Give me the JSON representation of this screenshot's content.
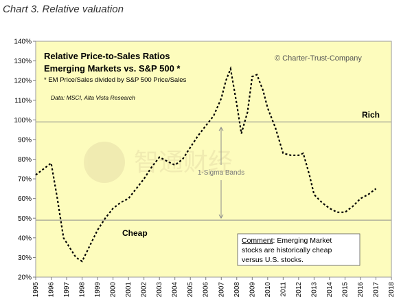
{
  "caption": "Chart 3. Relative valuation",
  "chart_data": {
    "type": "line",
    "title": "Relative Price-to-Sales Ratios",
    "subtitle": "Emerging Markets vs. S&P 500 *",
    "note": "* EM Price/Sales divided by S&P 500 Price/Sales",
    "source": "Data: MSCI, Alta Vista Research",
    "copyright": "© Charter-Trust-Company",
    "x_ticks": [
      "1995",
      "1996",
      "1997",
      "1998",
      "1999",
      "2000",
      "2001",
      "2002",
      "2003",
      "2004",
      "2005",
      "2006",
      "2007",
      "2008",
      "2009",
      "2010",
      "2011",
      "2012",
      "2013",
      "2014",
      "2015",
      "2016",
      "2017",
      "2018"
    ],
    "xlim": [
      1995,
      2018
    ],
    "ylim": [
      20,
      140
    ],
    "y_ticks": [
      20,
      30,
      40,
      50,
      60,
      70,
      80,
      90,
      100,
      110,
      120,
      130,
      140
    ],
    "y_tick_labels": [
      "20%",
      "30%",
      "40%",
      "50%",
      "60%",
      "70%",
      "80%",
      "90%",
      "100%",
      "110%",
      "120%",
      "130%",
      "140%"
    ],
    "series": [
      {
        "x": [
          1995.0,
          1995.5,
          1996.0,
          1996.4,
          1996.8,
          1997.2,
          1997.6,
          1998.0,
          1998.5,
          1999.0,
          1999.5,
          2000.0,
          2000.5,
          2001.0,
          2001.5,
          2002.0,
          2002.5,
          2003.0,
          2003.5,
          2004.0,
          2004.5,
          2005.0,
          2005.5,
          2006.0,
          2006.5,
          2007.0,
          2007.3,
          2007.6,
          2008.0,
          2008.3,
          2008.7,
          2009.0,
          2009.3,
          2009.7,
          2010.0,
          2010.5,
          2011.0,
          2011.5,
          2012.0,
          2012.3,
          2012.7,
          2013.0,
          2013.5,
          2014.0,
          2014.5,
          2015.0,
          2015.5,
          2016.0,
          2016.5,
          2017.0
        ],
        "y": [
          72,
          75,
          78,
          60,
          40,
          35,
          30,
          28,
          36,
          44,
          50,
          55,
          58,
          60,
          65,
          70,
          76,
          81,
          79,
          77,
          80,
          86,
          92,
          97,
          102,
          111,
          120,
          126,
          108,
          93,
          104,
          122,
          123,
          115,
          106,
          96,
          83,
          82,
          82,
          83,
          72,
          62,
          58,
          55,
          53,
          53,
          56,
          60,
          62,
          65
        ]
      }
    ],
    "reference_lines": [
      {
        "y": 99,
        "label": "Rich"
      },
      {
        "y": 49,
        "label": "Cheap"
      }
    ],
    "band_label": "1-Sigma Bands",
    "comment_heading": "Comment",
    "comment_lines": [
      ": Emerging Market",
      "stocks are historically cheap",
      "versus U.S. stocks."
    ],
    "watermark": "智通财经",
    "colors": {
      "plot_bg": "#fdfcbd",
      "line": "#000000",
      "ref_line": "#8c8c8c",
      "arrow": "#8c8c8c",
      "comment_bg": "#ffffff"
    },
    "grid": false
  }
}
